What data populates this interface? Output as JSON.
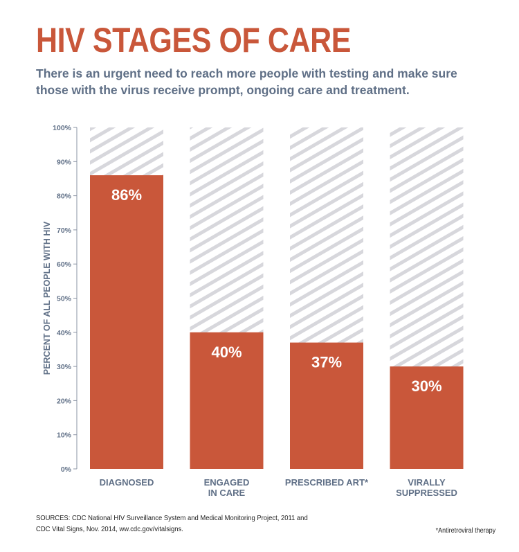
{
  "header": {
    "title": "HIV STAGES OF CARE",
    "subtitle_lines": [
      "There is an urgent need to reach more people with testing and make sure",
      "those with the virus receive prompt, ongoing care and treatment."
    ]
  },
  "colors": {
    "accent": "#c9573a",
    "text": "#5f6f86",
    "hatch": "#d7d7dc",
    "axis": "#8a93a3"
  },
  "chart_data": {
    "type": "bar",
    "categories": [
      [
        "DIAGNOSED"
      ],
      [
        "ENGAGED",
        "IN CARE"
      ],
      [
        "PRESCRIBED ART*"
      ],
      [
        "VIRALLY",
        "SUPPRESSED"
      ]
    ],
    "values": [
      86,
      40,
      37,
      30
    ],
    "data_labels": [
      "86%",
      "40%",
      "37%",
      "30%"
    ],
    "ylabel": "PERCENT OF ALL PEOPLE WITH HIV",
    "ylim": [
      0,
      100
    ],
    "yticks": [
      0,
      10,
      20,
      30,
      40,
      50,
      60,
      70,
      80,
      90,
      100
    ],
    "ytick_labels": [
      "0%",
      "10%",
      "20%",
      "30%",
      "40%",
      "50%",
      "60%",
      "70%",
      "80%",
      "90%",
      "100%"
    ],
    "grid": false,
    "background_fill": "hatched to 100%"
  },
  "footer": {
    "source_lines": [
      "SOURCES: CDC National HIV Surveillance System and Medical Monitoring Project, 2011 and",
      "CDC Vital Signs, Nov. 2014, ww.cdc.gov/vitalsigns."
    ],
    "footnote": "*Antiretroviral therapy"
  }
}
